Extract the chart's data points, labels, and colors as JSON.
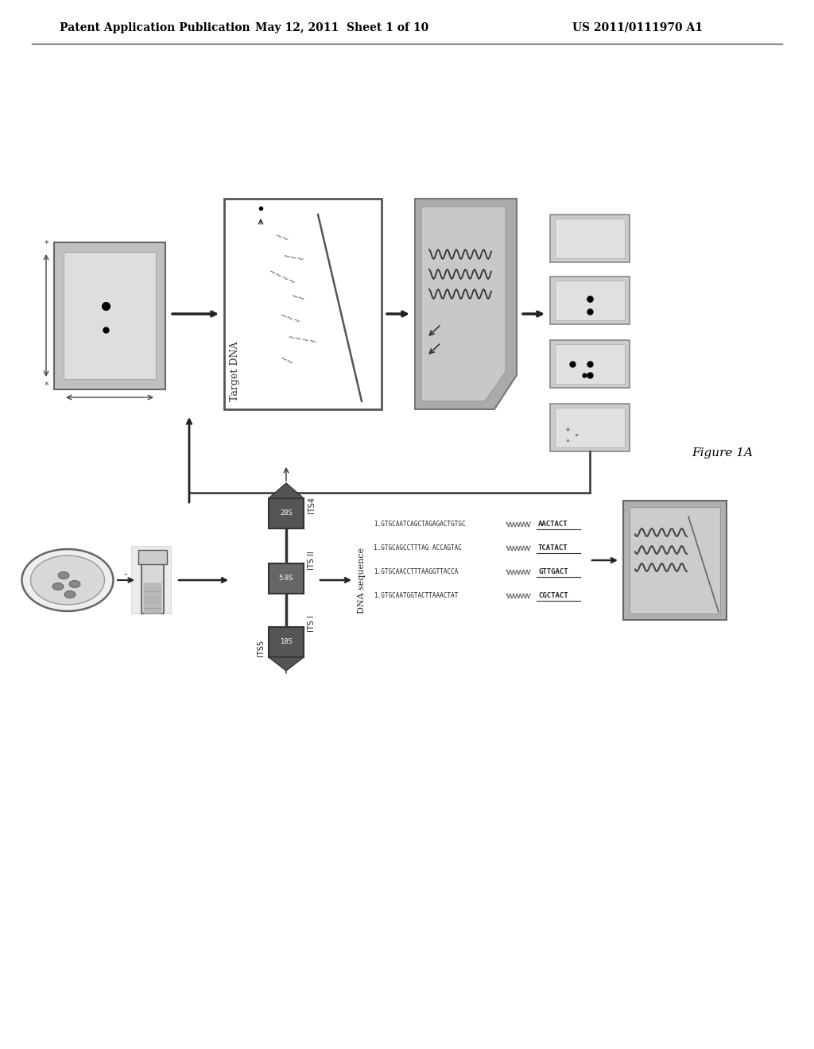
{
  "bg_color": "#ffffff",
  "header_left": "Patent Application Publication",
  "header_mid": "May 12, 2011  Sheet 1 of 10",
  "header_right": "US 2011/0111970 A1",
  "figure_label": "Figure 1A",
  "seq_lines": [
    [
      "1.GTGCAATCAGCTAGAGACTGTGC",
      "AACTACT"
    ],
    [
      "1.GTGCAGCCTTTAG ACCAGTAC",
      "TCATACT"
    ],
    [
      "1.GTGCAACCTTTAAGGTTACCA",
      "GTTGACT"
    ],
    [
      "1.GTGCAATGGTACTTAAACTAT",
      "CGCTACT"
    ]
  ]
}
